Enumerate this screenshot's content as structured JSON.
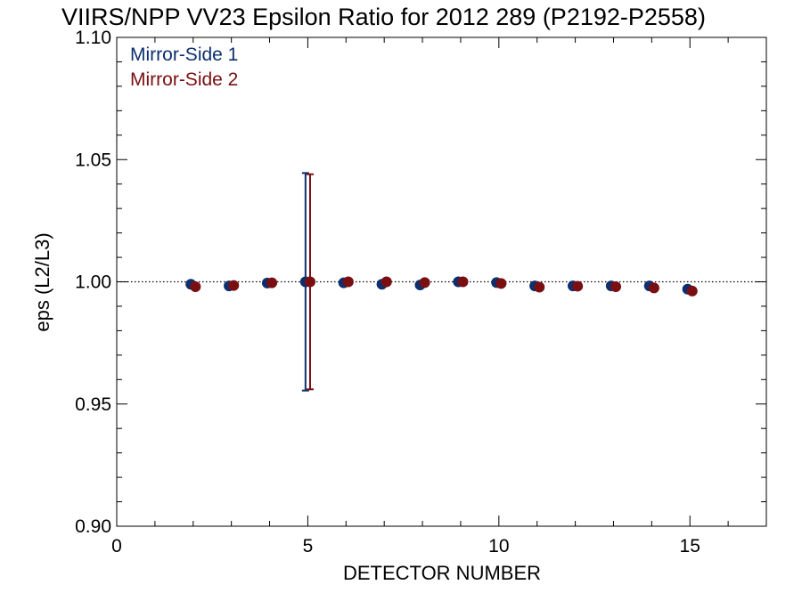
{
  "chart_data": {
    "type": "scatter",
    "title": "VIIRS/NPP VV23 Epsilon Ratio for 2012 289 (P2192-P2558)",
    "xlabel": "DETECTOR NUMBER",
    "ylabel": "eps (L2/L3)",
    "xlim": [
      0,
      17
    ],
    "ylim": [
      0.9,
      1.1
    ],
    "x_ticks": [
      0,
      5,
      10,
      15
    ],
    "x_tick_labels": [
      "0",
      "5",
      "10",
      "15"
    ],
    "y_ticks": [
      0.9,
      0.95,
      1.0,
      1.05,
      1.1
    ],
    "y_tick_labels": [
      "0.90",
      "0.95",
      "1.00",
      "1.05",
      "1.10"
    ],
    "reference_line": 1.0,
    "legend_position": "top-left",
    "series": [
      {
        "name": "Mirror-Side 1",
        "color": "#0d2f6e",
        "x": [
          2,
          3,
          4,
          5,
          6,
          7,
          8,
          9,
          10,
          11,
          12,
          13,
          14,
          15
        ],
        "y": [
          0.999,
          0.9983,
          0.9995,
          1.0,
          0.9996,
          0.999,
          0.9987,
          1.0,
          0.9997,
          0.9983,
          0.9983,
          0.9983,
          0.9983,
          0.997
        ],
        "err": [
          0,
          0,
          0,
          0.0445,
          0,
          0,
          0,
          0,
          0,
          0,
          0,
          0,
          0,
          0
        ]
      },
      {
        "name": "Mirror-Side 2",
        "color": "#7a0f12",
        "x": [
          2,
          3,
          4,
          5,
          6,
          7,
          8,
          9,
          10,
          11,
          12,
          13,
          14,
          15
        ],
        "y": [
          0.998,
          0.9985,
          0.9996,
          1.0,
          1.0,
          1.0,
          0.9997,
          1.0,
          0.9993,
          0.9978,
          0.9982,
          0.998,
          0.9975,
          0.9962
        ],
        "err": [
          0,
          0,
          0,
          0.044,
          0,
          0,
          0,
          0,
          0,
          0,
          0,
          0,
          0,
          0
        ]
      }
    ]
  }
}
